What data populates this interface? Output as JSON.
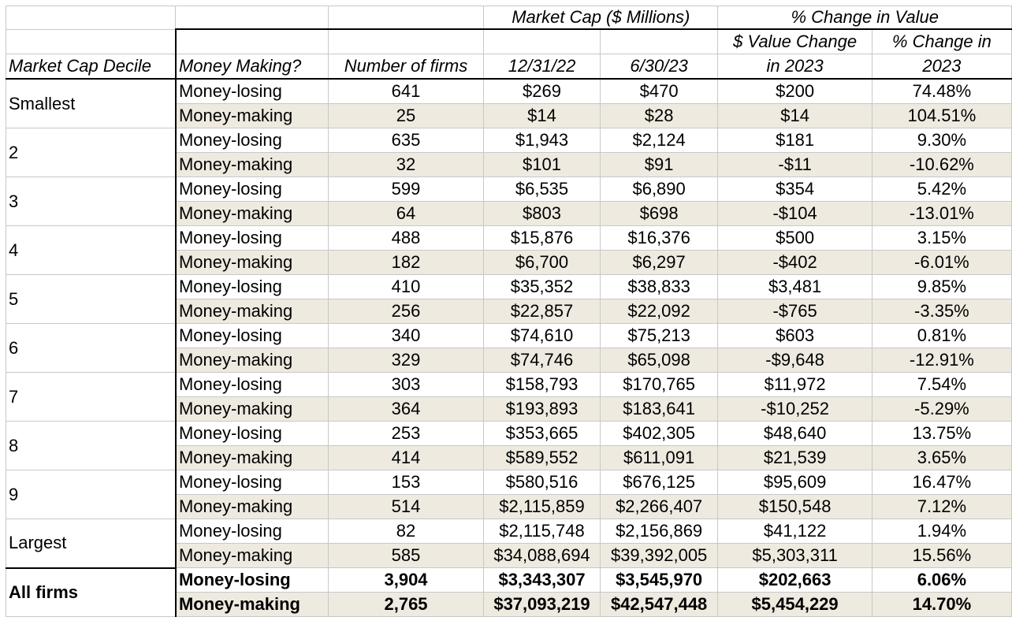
{
  "header": {
    "market_cap_group": "Market Cap ($ Millions)",
    "pct_change_group": "% Change in Value",
    "col_decile": "Market Cap Decile",
    "col_money_making": "Money Making?",
    "col_num_firms": "Number of firms",
    "col_date1": "12/31/22",
    "col_date2": "6/30/23",
    "col_value_change_l1": "$ Value Change",
    "col_value_change_l2": "in 2023",
    "col_pct_change_l1": "% Change in",
    "col_pct_change_l2": "2023"
  },
  "groups": [
    {
      "decile": "Smallest",
      "rows": [
        {
          "type": "Money-losing",
          "firms": "641",
          "d1": "$269",
          "d2": "$470",
          "chg": "$200",
          "pct": "74.48%"
        },
        {
          "type": "Money-making",
          "firms": "25",
          "d1": "$14",
          "d2": "$28",
          "chg": "$14",
          "pct": "104.51%"
        }
      ]
    },
    {
      "decile": "2",
      "rows": [
        {
          "type": "Money-losing",
          "firms": "635",
          "d1": "$1,943",
          "d2": "$2,124",
          "chg": "$181",
          "pct": "9.30%"
        },
        {
          "type": "Money-making",
          "firms": "32",
          "d1": "$101",
          "d2": "$91",
          "chg": "-$11",
          "pct": "-10.62%"
        }
      ]
    },
    {
      "decile": "3",
      "rows": [
        {
          "type": "Money-losing",
          "firms": "599",
          "d1": "$6,535",
          "d2": "$6,890",
          "chg": "$354",
          "pct": "5.42%"
        },
        {
          "type": "Money-making",
          "firms": "64",
          "d1": "$803",
          "d2": "$698",
          "chg": "-$104",
          "pct": "-13.01%"
        }
      ]
    },
    {
      "decile": "4",
      "rows": [
        {
          "type": "Money-losing",
          "firms": "488",
          "d1": "$15,876",
          "d2": "$16,376",
          "chg": "$500",
          "pct": "3.15%"
        },
        {
          "type": "Money-making",
          "firms": "182",
          "d1": "$6,700",
          "d2": "$6,297",
          "chg": "-$402",
          "pct": "-6.01%"
        }
      ]
    },
    {
      "decile": "5",
      "rows": [
        {
          "type": "Money-losing",
          "firms": "410",
          "d1": "$35,352",
          "d2": "$38,833",
          "chg": "$3,481",
          "pct": "9.85%"
        },
        {
          "type": "Money-making",
          "firms": "256",
          "d1": "$22,857",
          "d2": "$22,092",
          "chg": "-$765",
          "pct": "-3.35%"
        }
      ]
    },
    {
      "decile": "6",
      "rows": [
        {
          "type": "Money-losing",
          "firms": "340",
          "d1": "$74,610",
          "d2": "$75,213",
          "chg": "$603",
          "pct": "0.81%"
        },
        {
          "type": "Money-making",
          "firms": "329",
          "d1": "$74,746",
          "d2": "$65,098",
          "chg": "-$9,648",
          "pct": "-12.91%"
        }
      ]
    },
    {
      "decile": "7",
      "rows": [
        {
          "type": "Money-losing",
          "firms": "303",
          "d1": "$158,793",
          "d2": "$170,765",
          "chg": "$11,972",
          "pct": "7.54%"
        },
        {
          "type": "Money-making",
          "firms": "364",
          "d1": "$193,893",
          "d2": "$183,641",
          "chg": "-$10,252",
          "pct": "-5.29%"
        }
      ]
    },
    {
      "decile": "8",
      "rows": [
        {
          "type": "Money-losing",
          "firms": "253",
          "d1": "$353,665",
          "d2": "$402,305",
          "chg": "$48,640",
          "pct": "13.75%"
        },
        {
          "type": "Money-making",
          "firms": "414",
          "d1": "$589,552",
          "d2": "$611,091",
          "chg": "$21,539",
          "pct": "3.65%"
        }
      ]
    },
    {
      "decile": "9",
      "rows": [
        {
          "type": "Money-losing",
          "firms": "153",
          "d1": "$580,516",
          "d2": "$676,125",
          "chg": "$95,609",
          "pct": "16.47%"
        },
        {
          "type": "Money-making",
          "firms": "514",
          "d1": "$2,115,859",
          "d2": "$2,266,407",
          "chg": "$150,548",
          "pct": "7.12%"
        }
      ]
    },
    {
      "decile": "Largest",
      "rows": [
        {
          "type": "Money-losing",
          "firms": "82",
          "d1": "$2,115,748",
          "d2": "$2,156,869",
          "chg": "$41,122",
          "pct": "1.94%"
        },
        {
          "type": "Money-making",
          "firms": "585",
          "d1": "$34,088,694",
          "d2": "$39,392,005",
          "chg": "$5,303,311",
          "pct": "15.56%"
        }
      ]
    }
  ],
  "totals": {
    "decile": "All firms",
    "rows": [
      {
        "type": "Money-losing",
        "firms": "3,904",
        "d1": "$3,343,307",
        "d2": "$3,545,970",
        "chg": "$202,663",
        "pct": "6.06%"
      },
      {
        "type": "Money-making",
        "firms": "2,765",
        "d1": "$37,093,219",
        "d2": "$42,547,448",
        "chg": "$5,454,229",
        "pct": "14.70%"
      }
    ]
  },
  "colors": {
    "shade": "#eeeae0",
    "grid": "#c8c8c8",
    "rule": "#000000"
  }
}
